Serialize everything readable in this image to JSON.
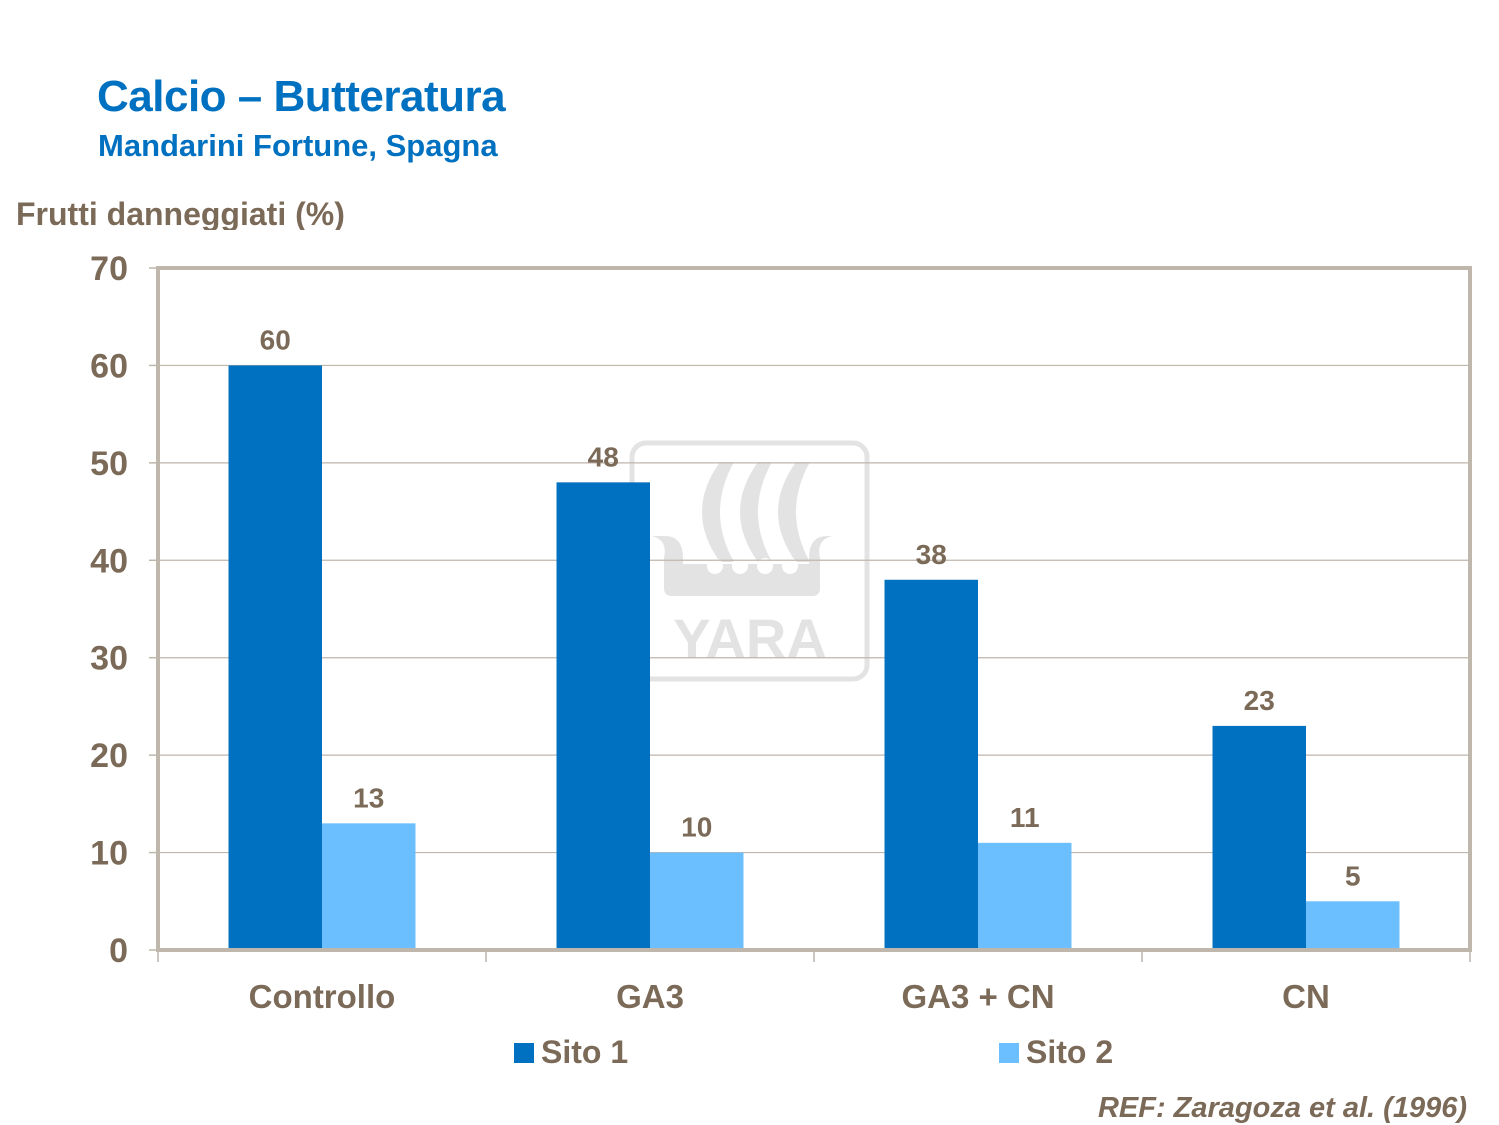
{
  "header": {
    "title": "Calcio – Butteratura",
    "subtitle": "Mandarini Fortune, Spagna"
  },
  "watermark": {
    "text": "YARA",
    "icon": "yara-viking-ship-logo"
  },
  "colors": {
    "sito1": "#0070C0",
    "sito2": "#6BBFFF",
    "text": "#7B6A58",
    "title": "#0070C0",
    "axis": "#BFB6AC",
    "grid": "#BFB6AC"
  },
  "reference": "REF: Zaragoza et al. (1996)",
  "chart_data": {
    "type": "bar",
    "title": "Calcio – Butteratura",
    "subtitle": "Mandarini Fortune, Spagna",
    "xlabel": "",
    "ylabel": "Frutti danneggiati (%)",
    "ylim": [
      0,
      70
    ],
    "yticks": [
      "0",
      "10",
      "20",
      "30",
      "40",
      "50",
      "60",
      "70"
    ],
    "ytick_values": [
      0,
      10,
      20,
      30,
      40,
      50,
      60,
      70
    ],
    "grid": true,
    "legend_position": "bottom",
    "categories": [
      "Controllo",
      "GA3",
      "GA3 + CN",
      "CN"
    ],
    "series": [
      {
        "name": "Sito 1",
        "values": [
          60,
          48,
          38,
          23
        ],
        "labels": [
          "60",
          "48",
          "38",
          "23"
        ]
      },
      {
        "name": "Sito 2",
        "values": [
          13,
          10,
          11,
          5
        ],
        "labels": [
          "13",
          "10",
          "11",
          "5"
        ]
      }
    ]
  }
}
